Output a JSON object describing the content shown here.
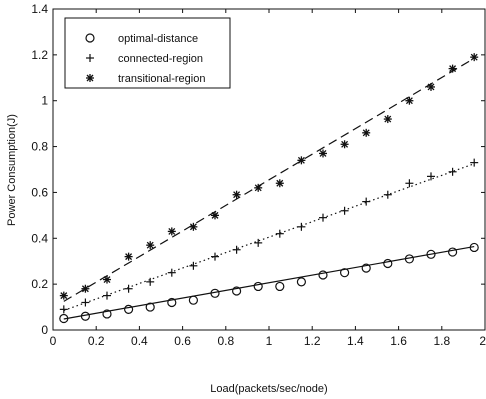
{
  "chart_data": {
    "type": "scatter",
    "title": "",
    "xlabel": "Load(packets/sec/node)",
    "ylabel": "Power Consumption(J)",
    "xlim": [
      0,
      2
    ],
    "ylim": [
      0,
      1.4
    ],
    "xticks": [
      "0",
      "0.2",
      "0.4",
      "0.6",
      "0.8",
      "1",
      "1.2",
      "1.4",
      "1.6",
      "1.8",
      "2"
    ],
    "yticks": [
      "0",
      "0.2",
      "0.4",
      "0.6",
      "0.8",
      "1",
      "1.2",
      "1.4"
    ],
    "grid": false,
    "legend_position": "top-left",
    "x": [
      0.05,
      0.15,
      0.25,
      0.35,
      0.45,
      0.55,
      0.65,
      0.75,
      0.85,
      0.95,
      1.05,
      1.15,
      1.25,
      1.35,
      1.45,
      1.55,
      1.65,
      1.75,
      1.85,
      1.95
    ],
    "series": [
      {
        "name": "optimal-distance",
        "marker": "circle",
        "line_style": "solid",
        "values": [
          0.05,
          0.06,
          0.07,
          0.09,
          0.1,
          0.12,
          0.13,
          0.16,
          0.17,
          0.19,
          0.19,
          0.21,
          0.24,
          0.25,
          0.27,
          0.29,
          0.31,
          0.33,
          0.34,
          0.36
        ],
        "fit": [
          0.048,
          0.364
        ]
      },
      {
        "name": "connected-region",
        "marker": "plus",
        "line_style": "dotted",
        "values": [
          0.09,
          0.12,
          0.15,
          0.18,
          0.21,
          0.25,
          0.28,
          0.32,
          0.35,
          0.38,
          0.42,
          0.45,
          0.49,
          0.52,
          0.56,
          0.59,
          0.64,
          0.67,
          0.69,
          0.73
        ],
        "fit": [
          0.085,
          0.725
        ]
      },
      {
        "name": "transitional-region",
        "marker": "star",
        "line_style": "dashed",
        "values": [
          0.15,
          0.18,
          0.22,
          0.32,
          0.37,
          0.43,
          0.45,
          0.5,
          0.59,
          0.62,
          0.64,
          0.74,
          0.77,
          0.81,
          0.86,
          0.92,
          1.0,
          1.06,
          1.14,
          1.19
        ],
        "fit": [
          0.125,
          1.185
        ]
      }
    ],
    "colors": {
      "axis": "#111111",
      "marks": "#111111",
      "background": "#ffffff"
    }
  }
}
